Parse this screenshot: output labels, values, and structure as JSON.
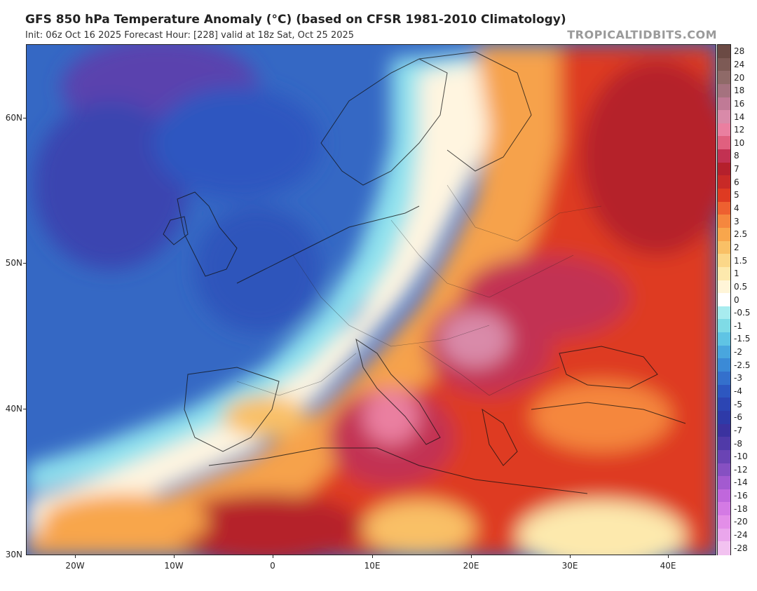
{
  "header": {
    "title": "GFS 850 hPa Temperature Anomaly (°C) (based on CFSR 1981-2010 Climatology)",
    "subtitle": "Init: 06z Oct 16 2025   Forecast Hour: [228]   valid at 18z Sat, Oct 25 2025",
    "brand": "TROPICALTIDBITS.COM"
  },
  "map": {
    "lat_labels": [
      "60N",
      "50N",
      "40N",
      "30N"
    ],
    "lon_labels": [
      "20W",
      "10W",
      "0",
      "10E",
      "20E",
      "30E",
      "40E"
    ]
  },
  "colorbar": {
    "labels": [
      "28",
      "24",
      "20",
      "18",
      "16",
      "14",
      "12",
      "10",
      "8",
      "7",
      "6",
      "5",
      "4",
      "3",
      "2.5",
      "2",
      "1.5",
      "1",
      "0.5",
      "0",
      "-0.5",
      "-1",
      "-1.5",
      "-2",
      "-2.5",
      "-3",
      "-4",
      "-5",
      "-6",
      "-7",
      "-8",
      "-10",
      "-12",
      "-14",
      "-16",
      "-18",
      "-20",
      "-24",
      "-28"
    ],
    "colors": [
      "#6b4a44",
      "#7d5a55",
      "#8f6a68",
      "#a5727f",
      "#c07a96",
      "#d98aa9",
      "#ea7fa0",
      "#e0607f",
      "#c23152",
      "#b5202c",
      "#c82a27",
      "#de3a22",
      "#ee6030",
      "#f5873e",
      "#f8a64c",
      "#f9c066",
      "#fbd789",
      "#fde9ad",
      "#fff5d8",
      "#ffffff",
      "#a8ecef",
      "#7fdbe6",
      "#5fc4e4",
      "#49a6de",
      "#3b8ad6",
      "#3470cc",
      "#2d57c0",
      "#2c45b3",
      "#2e3aa8",
      "#3b329f",
      "#503aa8",
      "#6a44b4",
      "#8650c2",
      "#a35ad0",
      "#c067dc",
      "#d47ae4",
      "#e38ee8",
      "#eaa6ec",
      "#f2c2f0"
    ]
  }
}
